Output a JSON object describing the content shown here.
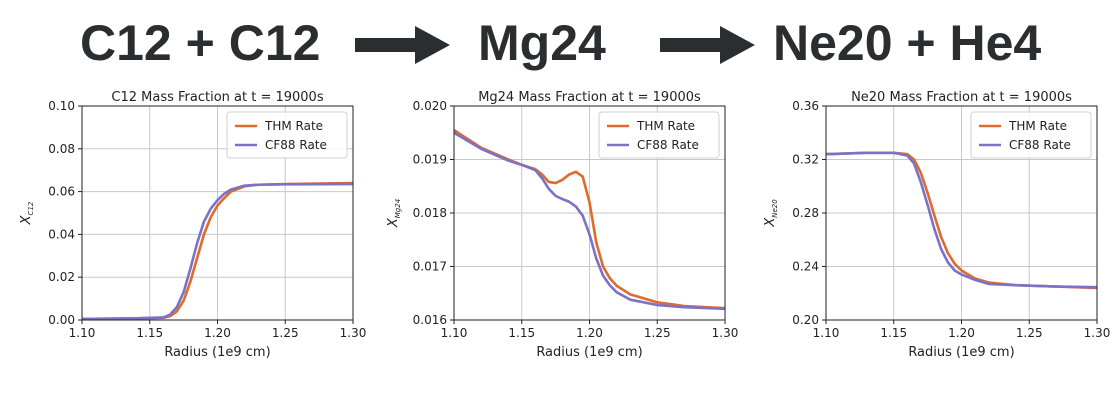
{
  "headline": {
    "reactant": "C12 + C12",
    "intermediate": "Mg24",
    "product": "Ne20 + He4",
    "text_color": "#2b2e30"
  },
  "chart_data": [
    {
      "type": "line",
      "title": "C12 Mass Fraction at t = 19000s",
      "xlabel": "Radius (1e9 cm)",
      "ylabel": "X_C12",
      "ylabel_main": "X",
      "ylabel_sub": "C12",
      "xlim": [
        1.1,
        1.3
      ],
      "ylim": [
        0.0,
        0.1
      ],
      "xticks": [
        "1.10",
        "1.15",
        "1.20",
        "1.25",
        "1.30"
      ],
      "yticks": [
        "0.00",
        "0.02",
        "0.04",
        "0.06",
        "0.08",
        "0.10"
      ],
      "grid": true,
      "legend": "top-right",
      "series": [
        {
          "name": "THM Rate",
          "color": "#e06a2c",
          "x": [
            1.1,
            1.14,
            1.16,
            1.165,
            1.17,
            1.175,
            1.18,
            1.185,
            1.19,
            1.195,
            1.2,
            1.205,
            1.21,
            1.22,
            1.23,
            1.25,
            1.3
          ],
          "y": [
            0.0005,
            0.0008,
            0.001,
            0.0018,
            0.004,
            0.009,
            0.018,
            0.029,
            0.04,
            0.048,
            0.0535,
            0.057,
            0.06,
            0.0625,
            0.0632,
            0.0635,
            0.064
          ]
        },
        {
          "name": "CF88 Rate",
          "color": "#7b72c8",
          "x": [
            1.1,
            1.14,
            1.16,
            1.165,
            1.17,
            1.175,
            1.18,
            1.185,
            1.19,
            1.195,
            1.2,
            1.205,
            1.21,
            1.22,
            1.23,
            1.25,
            1.3
          ],
          "y": [
            0.0005,
            0.0008,
            0.0012,
            0.0025,
            0.006,
            0.013,
            0.024,
            0.036,
            0.046,
            0.052,
            0.056,
            0.059,
            0.061,
            0.0628,
            0.0632,
            0.0634,
            0.0635
          ]
        }
      ]
    },
    {
      "type": "line",
      "title": "Mg24 Mass Fraction at t = 19000s",
      "xlabel": "Radius (1e9 cm)",
      "ylabel": "X_Mg24",
      "ylabel_main": "X",
      "ylabel_sub": "Mg24",
      "xlim": [
        1.1,
        1.3
      ],
      "ylim": [
        0.016,
        0.02
      ],
      "xticks": [
        "1.10",
        "1.15",
        "1.20",
        "1.25",
        "1.30"
      ],
      "yticks": [
        "0.016",
        "0.017",
        "0.018",
        "0.019",
        "0.020"
      ],
      "grid": true,
      "legend": "top-right",
      "series": [
        {
          "name": "THM Rate",
          "color": "#e06a2c",
          "x": [
            1.1,
            1.12,
            1.14,
            1.15,
            1.16,
            1.165,
            1.17,
            1.175,
            1.18,
            1.185,
            1.19,
            1.195,
            1.2,
            1.205,
            1.21,
            1.215,
            1.22,
            1.23,
            1.25,
            1.27,
            1.3
          ],
          "y": [
            0.01955,
            0.01922,
            0.019,
            0.0189,
            0.01882,
            0.01872,
            0.01858,
            0.01856,
            0.01862,
            0.01872,
            0.01877,
            0.01868,
            0.0182,
            0.01745,
            0.017,
            0.01678,
            0.01664,
            0.01648,
            0.01633,
            0.01626,
            0.01622
          ]
        },
        {
          "name": "CF88 Rate",
          "color": "#7b72c8",
          "x": [
            1.1,
            1.12,
            1.14,
            1.15,
            1.16,
            1.165,
            1.17,
            1.175,
            1.18,
            1.185,
            1.19,
            1.195,
            1.2,
            1.205,
            1.21,
            1.215,
            1.22,
            1.23,
            1.25,
            1.27,
            1.3
          ],
          "y": [
            0.0195,
            0.0192,
            0.01898,
            0.0189,
            0.0188,
            0.01865,
            0.01845,
            0.01832,
            0.01826,
            0.01821,
            0.01812,
            0.01795,
            0.0176,
            0.01715,
            0.01683,
            0.01665,
            0.01652,
            0.01638,
            0.01628,
            0.01624,
            0.01621
          ]
        }
      ]
    },
    {
      "type": "line",
      "title": "Ne20 Mass Fraction at t = 19000s",
      "xlabel": "Radius (1e9 cm)",
      "ylabel": "X_Ne20",
      "ylabel_main": "X",
      "ylabel_sub": "Ne20",
      "xlim": [
        1.1,
        1.3
      ],
      "ylim": [
        0.2,
        0.36
      ],
      "xticks": [
        "1.10",
        "1.15",
        "1.20",
        "1.25",
        "1.30"
      ],
      "yticks": [
        "0.20",
        "0.24",
        "0.28",
        "0.32",
        "0.36"
      ],
      "grid": true,
      "legend": "top-right",
      "series": [
        {
          "name": "THM Rate",
          "color": "#e06a2c",
          "x": [
            1.1,
            1.13,
            1.15,
            1.16,
            1.165,
            1.17,
            1.175,
            1.18,
            1.185,
            1.19,
            1.195,
            1.2,
            1.205,
            1.21,
            1.22,
            1.24,
            1.27,
            1.3
          ],
          "y": [
            0.324,
            0.325,
            0.325,
            0.324,
            0.32,
            0.31,
            0.295,
            0.278,
            0.262,
            0.25,
            0.242,
            0.237,
            0.234,
            0.231,
            0.228,
            0.226,
            0.225,
            0.224
          ]
        },
        {
          "name": "CF88 Rate",
          "color": "#7b72c8",
          "x": [
            1.1,
            1.13,
            1.15,
            1.16,
            1.165,
            1.17,
            1.175,
            1.18,
            1.185,
            1.19,
            1.195,
            1.2,
            1.205,
            1.21,
            1.22,
            1.24,
            1.27,
            1.3
          ],
          "y": [
            0.324,
            0.325,
            0.325,
            0.323,
            0.317,
            0.303,
            0.286,
            0.268,
            0.253,
            0.243,
            0.237,
            0.234,
            0.232,
            0.23,
            0.227,
            0.226,
            0.225,
            0.2245
          ]
        }
      ]
    }
  ]
}
